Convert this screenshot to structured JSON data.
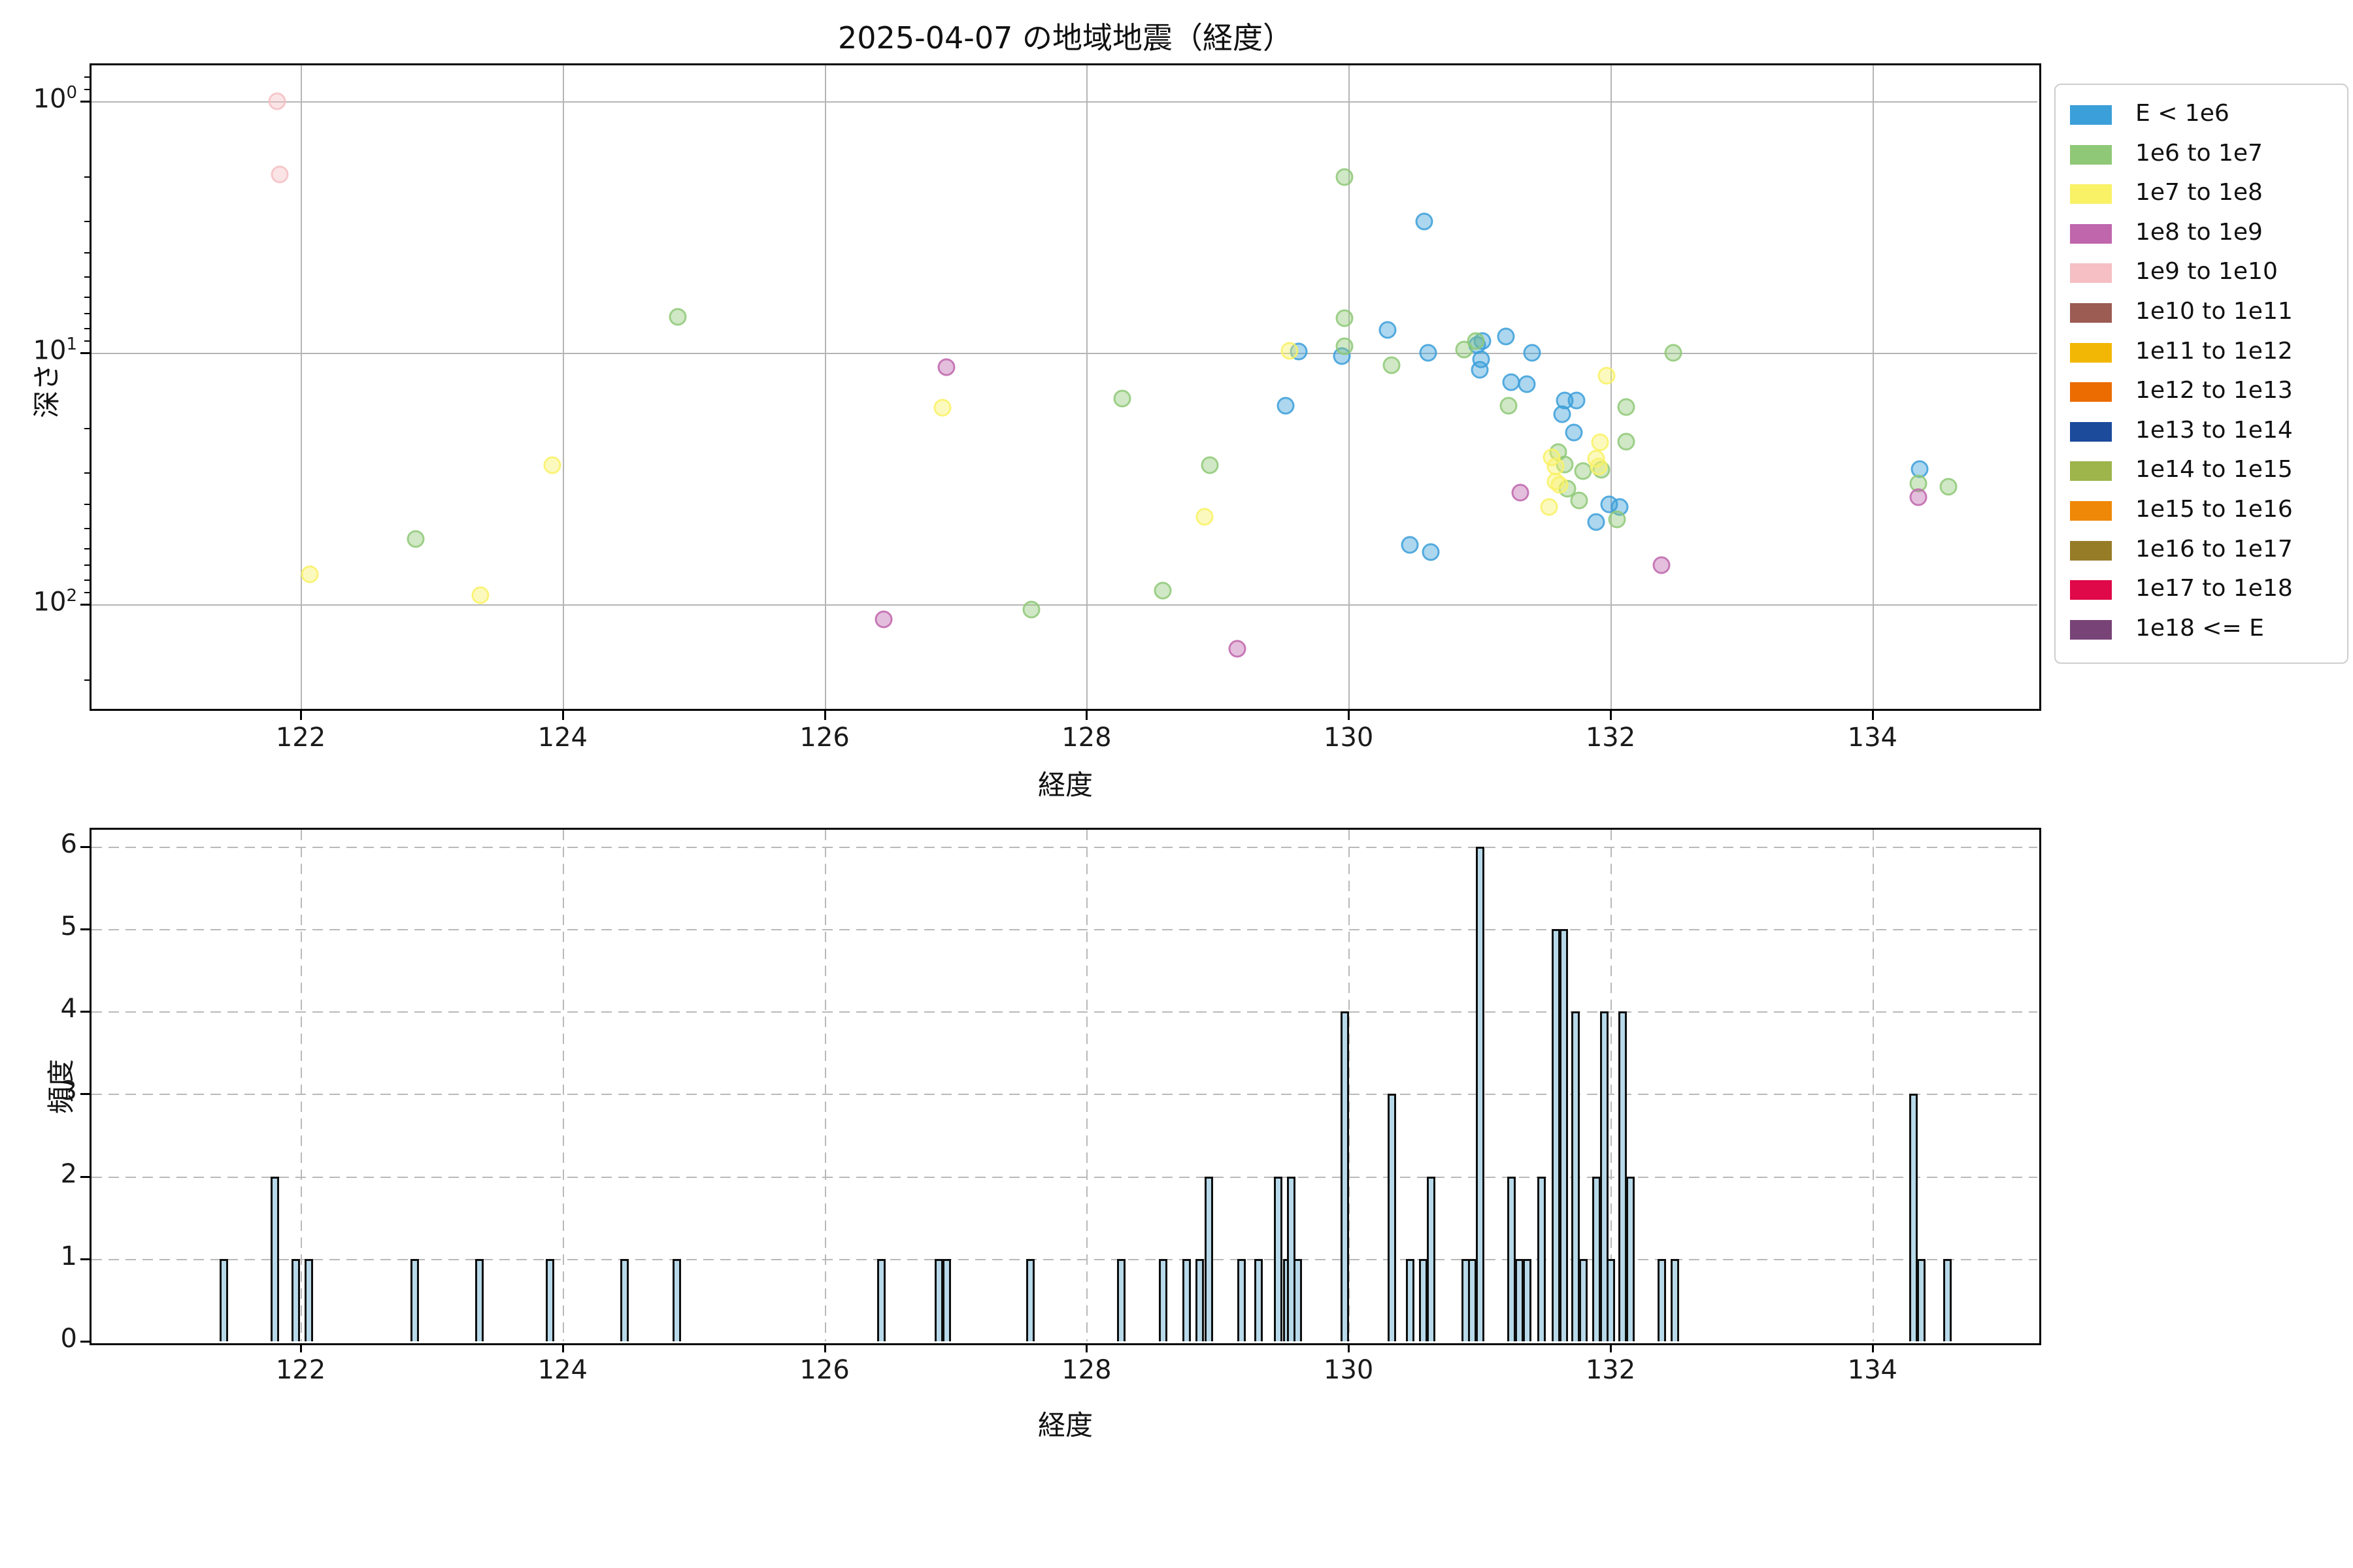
{
  "title": "2025-04-07 の地域地震（経度）",
  "chart_data": [
    {
      "type": "scatter",
      "title": "2025-04-07 の地域地震（経度）",
      "xlabel": "経度",
      "ylabel": "深さ",
      "yscale": "log",
      "y_inverted": true,
      "xlim": [
        120.42,
        135.29
      ],
      "ylim_depth": [
        0.72,
        261
      ],
      "xticks": [
        122,
        124,
        126,
        128,
        130,
        132,
        134
      ],
      "yticks": [
        {
          "value": 1,
          "base": "10",
          "exp": "0"
        },
        {
          "value": 10,
          "base": "10",
          "exp": "1"
        },
        {
          "value": 100,
          "base": "10",
          "exp": "2"
        }
      ],
      "y_minor_ticks": [
        0.8,
        0.9,
        2,
        3,
        4,
        5,
        6,
        7,
        8,
        9,
        20,
        30,
        40,
        50,
        60,
        70,
        80,
        90,
        200
      ],
      "grid": "solid",
      "legend_position": "outside-right",
      "legend": [
        {
          "label": "E < 1e6",
          "color": "#3B9FD9"
        },
        {
          "label": "1e6 to 1e7",
          "color": "#8FC877"
        },
        {
          "label": "1e7 to 1e8",
          "color": "#F9F166"
        },
        {
          "label": "1e8 to 1e9",
          "color": "#BF66AD"
        },
        {
          "label": "1e9 to 1e10",
          "color": "#F5BFC3"
        },
        {
          "label": "1e10 to 1e11",
          "color": "#9C5B53"
        },
        {
          "label": "1e11 to 1e12",
          "color": "#F2B705"
        },
        {
          "label": "1e12 to 1e13",
          "color": "#EC6C01"
        },
        {
          "label": "1e13 to 1e14",
          "color": "#1C4B9C"
        },
        {
          "label": "1e14 to 1e15",
          "color": "#9DB54A"
        },
        {
          "label": "1e15 to 1e16",
          "color": "#EF8806"
        },
        {
          "label": "1e16 to 1e17",
          "color": "#977C28"
        },
        {
          "label": "1e17 to 1e18",
          "color": "#DF0949"
        },
        {
          "label": "1e18 <= E",
          "color": "#784377"
        }
      ],
      "series": [
        {
          "name": "E < 1e6",
          "color": "#3B9FD9",
          "points": [
            [
              129.52,
              16.2
            ],
            [
              129.62,
              9.9
            ],
            [
              129.95,
              10.3
            ],
            [
              130.3,
              8.1
            ],
            [
              130.47,
              58
            ],
            [
              130.58,
              3.0
            ],
            [
              130.61,
              10.0
            ],
            [
              130.63,
              62
            ],
            [
              130.98,
              9.3
            ],
            [
              131.02,
              9.0
            ],
            [
              131.01,
              10.6
            ],
            [
              131.0,
              11.7
            ],
            [
              131.2,
              8.6
            ],
            [
              131.24,
              13.1
            ],
            [
              131.36,
              13.3
            ],
            [
              131.4,
              10.0
            ],
            [
              131.65,
              15.5
            ],
            [
              131.74,
              15.5
            ],
            [
              131.63,
              17.5
            ],
            [
              131.72,
              20.8
            ],
            [
              131.89,
              47
            ],
            [
              131.99,
              40
            ],
            [
              132.07,
              41
            ],
            [
              134.36,
              29
            ]
          ]
        },
        {
          "name": "1e6 to 1e7",
          "color": "#8FC877",
          "points": [
            [
              122.88,
              55
            ],
            [
              124.88,
              7.2
            ],
            [
              127.58,
              105
            ],
            [
              128.27,
              15.2
            ],
            [
              128.58,
              88
            ],
            [
              128.94,
              28
            ],
            [
              129.97,
              2.0
            ],
            [
              129.97,
              7.3
            ],
            [
              129.97,
              9.4
            ],
            [
              130.33,
              11.2
            ],
            [
              130.88,
              9.7
            ],
            [
              130.97,
              9.0
            ],
            [
              131.22,
              16.2
            ],
            [
              131.6,
              24.8
            ],
            [
              131.65,
              27.8
            ],
            [
              131.67,
              34.7
            ],
            [
              131.76,
              38.6
            ],
            [
              131.79,
              29.6
            ],
            [
              131.93,
              29.1
            ],
            [
              132.05,
              46
            ],
            [
              132.12,
              16.4
            ],
            [
              132.12,
              22.5
            ],
            [
              132.48,
              10.0
            ],
            [
              134.35,
              33
            ],
            [
              134.58,
              34
            ]
          ]
        },
        {
          "name": "1e7 to 1e8",
          "color": "#F9F166",
          "points": [
            [
              122.07,
              76
            ],
            [
              123.37,
              92
            ],
            [
              123.92,
              28
            ],
            [
              126.9,
              16.5
            ],
            [
              128.9,
              45
            ],
            [
              129.55,
              9.8
            ],
            [
              131.55,
              26
            ],
            [
              131.58,
              28.3
            ],
            [
              131.58,
              32.5
            ],
            [
              131.61,
              33.5
            ],
            [
              131.53,
              41
            ],
            [
              131.92,
              22.7
            ],
            [
              131.89,
              26.3
            ],
            [
              131.91,
              28.3
            ],
            [
              131.97,
              12.3
            ]
          ]
        },
        {
          "name": "1e8 to 1e9",
          "color": "#BF66AD",
          "points": [
            [
              126.45,
              115
            ],
            [
              126.93,
              11.4
            ],
            [
              129.15,
              150
            ],
            [
              131.31,
              36
            ],
            [
              132.39,
              70
            ],
            [
              134.35,
              37.5
            ]
          ]
        },
        {
          "name": "1e9 to 1e10",
          "color": "#F5BFC3",
          "points": [
            [
              121.82,
              1.0
            ],
            [
              121.84,
              1.95
            ]
          ]
        }
      ]
    },
    {
      "type": "bar",
      "xlabel": "経度",
      "ylabel": "頻度",
      "xlim": [
        120.42,
        135.29
      ],
      "ylim": [
        0,
        6.2
      ],
      "xticks": [
        122,
        124,
        126,
        128,
        130,
        132,
        134
      ],
      "yticks": [
        0,
        1,
        2,
        3,
        4,
        5,
        6
      ],
      "grid": "dashed",
      "bar_fill": "#b7d9e9",
      "bar_edge": "#0d0d0d",
      "bars": [
        [
          121.41,
          1
        ],
        [
          121.8,
          2
        ],
        [
          121.96,
          1
        ],
        [
          122.06,
          1
        ],
        [
          122.87,
          1
        ],
        [
          123.36,
          1
        ],
        [
          123.9,
          1
        ],
        [
          124.47,
          1
        ],
        [
          124.87,
          1
        ],
        [
          126.43,
          1
        ],
        [
          126.87,
          1
        ],
        [
          126.93,
          1
        ],
        [
          127.57,
          1
        ],
        [
          128.26,
          1
        ],
        [
          128.58,
          1
        ],
        [
          128.76,
          1
        ],
        [
          128.86,
          1
        ],
        [
          128.93,
          2
        ],
        [
          129.18,
          1
        ],
        [
          129.31,
          1
        ],
        [
          129.46,
          2
        ],
        [
          129.53,
          1
        ],
        [
          129.56,
          2
        ],
        [
          129.61,
          1
        ],
        [
          129.97,
          4
        ],
        [
          130.33,
          3
        ],
        [
          130.47,
          1
        ],
        [
          130.57,
          1
        ],
        [
          130.63,
          2
        ],
        [
          130.89,
          1
        ],
        [
          130.94,
          1
        ],
        [
          131.0,
          6
        ],
        [
          131.24,
          2
        ],
        [
          131.3,
          1
        ],
        [
          131.36,
          1
        ],
        [
          131.47,
          2
        ],
        [
          131.58,
          5
        ],
        [
          131.64,
          5
        ],
        [
          131.73,
          4
        ],
        [
          131.79,
          1
        ],
        [
          131.89,
          2
        ],
        [
          131.95,
          4
        ],
        [
          132.0,
          1
        ],
        [
          132.09,
          4
        ],
        [
          132.15,
          2
        ],
        [
          132.39,
          1
        ],
        [
          132.49,
          1
        ],
        [
          134.31,
          3
        ],
        [
          134.37,
          1
        ],
        [
          134.57,
          1
        ]
      ]
    }
  ]
}
